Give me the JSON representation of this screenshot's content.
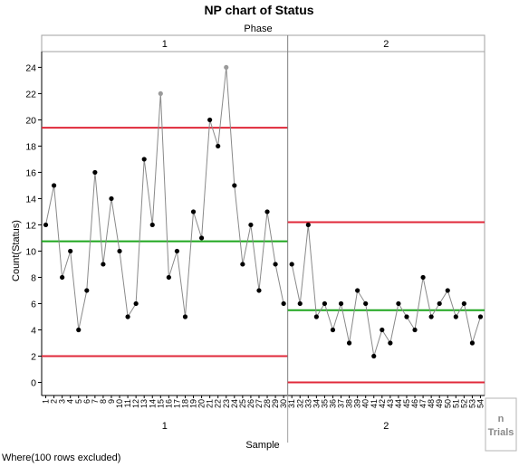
{
  "chart_data": {
    "type": "line",
    "title": "NP chart of Status",
    "group_title": "Phase",
    "xlabel": "Sample",
    "ylabel": "Count(Status)",
    "ylim": [
      -1,
      25.2
    ],
    "yticks": [
      0,
      2,
      4,
      6,
      8,
      10,
      12,
      14,
      16,
      18,
      20,
      22,
      24
    ],
    "n_trials_label": [
      "n",
      "Trials"
    ],
    "colors": {
      "limit": "#e0283a",
      "center": "#1fa61f",
      "line": "#8a8a8a",
      "point": "#000000",
      "flagged_point": "#9a9a9a",
      "separator": "#7f7f7f",
      "header_bg": "#ffffff"
    },
    "phases": [
      {
        "name": "1",
        "samples": [
          1,
          2,
          3,
          4,
          5,
          6,
          7,
          8,
          9,
          10,
          11,
          12,
          13,
          14,
          15,
          16,
          17,
          18,
          19,
          20,
          21,
          22,
          23,
          24,
          25,
          26,
          27,
          28,
          29,
          30
        ],
        "values": [
          12,
          15,
          8,
          10,
          4,
          7,
          16,
          9,
          14,
          10,
          5,
          6,
          17,
          12,
          22,
          8,
          10,
          5,
          13,
          11,
          20,
          18,
          24,
          15,
          9,
          12,
          7,
          13,
          9,
          6
        ],
        "flagged": [
          15,
          23
        ],
        "ucl": 19.4,
        "center": 10.75,
        "lcl": 2.0
      },
      {
        "name": "2",
        "samples": [
          31,
          32,
          33,
          34,
          35,
          36,
          37,
          38,
          39,
          40,
          41,
          42,
          43,
          44,
          45,
          46,
          47,
          48,
          49,
          50,
          51,
          52,
          53,
          54
        ],
        "values": [
          9,
          6,
          12,
          5,
          6,
          4,
          6,
          3,
          7,
          6,
          2,
          4,
          3,
          6,
          5,
          4,
          8,
          5,
          6,
          7,
          5,
          6,
          3,
          5
        ],
        "flagged": [],
        "ucl": 12.2,
        "center": 5.5,
        "lcl": 0
      }
    ]
  },
  "footer": "Where(100 rows excluded)"
}
